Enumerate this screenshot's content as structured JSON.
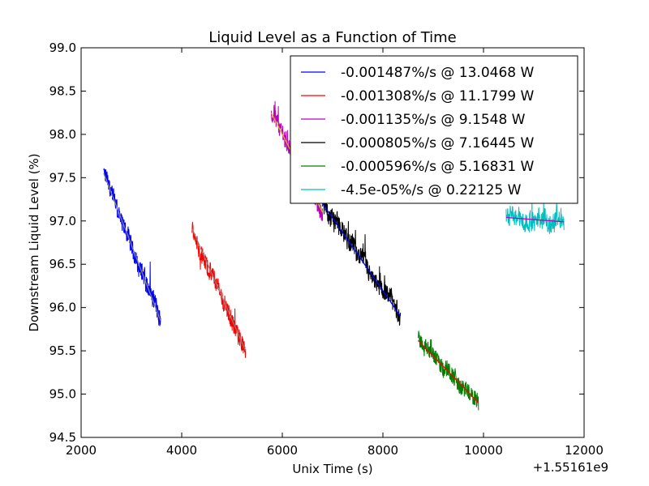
{
  "chart_data": {
    "type": "line",
    "title": "Liquid Level as a Function of Time",
    "xlabel": "Unix Time (s)",
    "ylabel": "Downstream Liquid Level (%)",
    "x_offset_label": "+1.55161e9",
    "xlim": [
      2000,
      12000
    ],
    "ylim": [
      94.5,
      99.0
    ],
    "x_ticks": [
      2000,
      4000,
      6000,
      8000,
      10000,
      12000
    ],
    "x_tick_labels": [
      "2000",
      "4000",
      "6000",
      "8000",
      "10000",
      "12000"
    ],
    "y_ticks": [
      94.5,
      95.0,
      95.5,
      96.0,
      96.5,
      97.0,
      97.5,
      98.0,
      98.5,
      99.0
    ],
    "y_tick_labels": [
      "94.5",
      "95.0",
      "95.5",
      "96.0",
      "96.5",
      "97.0",
      "97.5",
      "98.0",
      "98.5",
      "99.0"
    ],
    "grid": false,
    "legend_position": "top-right",
    "series": [
      {
        "name": "-0.001487%/s @ 13.0468 W",
        "color": "#0000ff",
        "fit_color": "#808080",
        "x_range": [
          2450,
          3580
        ],
        "fit": [
          97.55,
          95.85
        ],
        "noise": 0.13
      },
      {
        "name": "-0.001308%/s @ 11.1799 W",
        "color": "#ff0000",
        "fit_color": "#808080",
        "x_range": [
          4200,
          5270
        ],
        "fit": [
          96.92,
          95.5
        ],
        "noise": 0.13
      },
      {
        "name": "-0.001135%/s @ 9.1548 W",
        "color": "#bf00bf",
        "fit_color": "#bfbf00",
        "x_range": [
          5780,
          6800
        ],
        "fit": [
          98.25,
          97.1
        ],
        "noise": 0.13
      },
      {
        "name": "-0.000805%/s @ 7.16445 W",
        "color": "#000000",
        "fit_color": "#0000ff",
        "x_range": [
          6800,
          8350
        ],
        "fit": [
          97.2,
          95.9
        ],
        "noise": 0.13
      },
      {
        "name": "-0.000596%/s @ 5.16831 W",
        "color": "#008000",
        "fit_color": "#ff0000",
        "x_range": [
          8700,
          9900
        ],
        "fit": [
          95.62,
          94.9
        ],
        "noise": 0.12
      },
      {
        "name": "-4.5e-05%/s @ 0.22125 W",
        "color": "#00bfbf",
        "fit_color": "#bf00bf",
        "x_range": [
          10450,
          11600
        ],
        "fit": [
          97.04,
          96.99
        ],
        "noise": 0.14
      }
    ]
  }
}
